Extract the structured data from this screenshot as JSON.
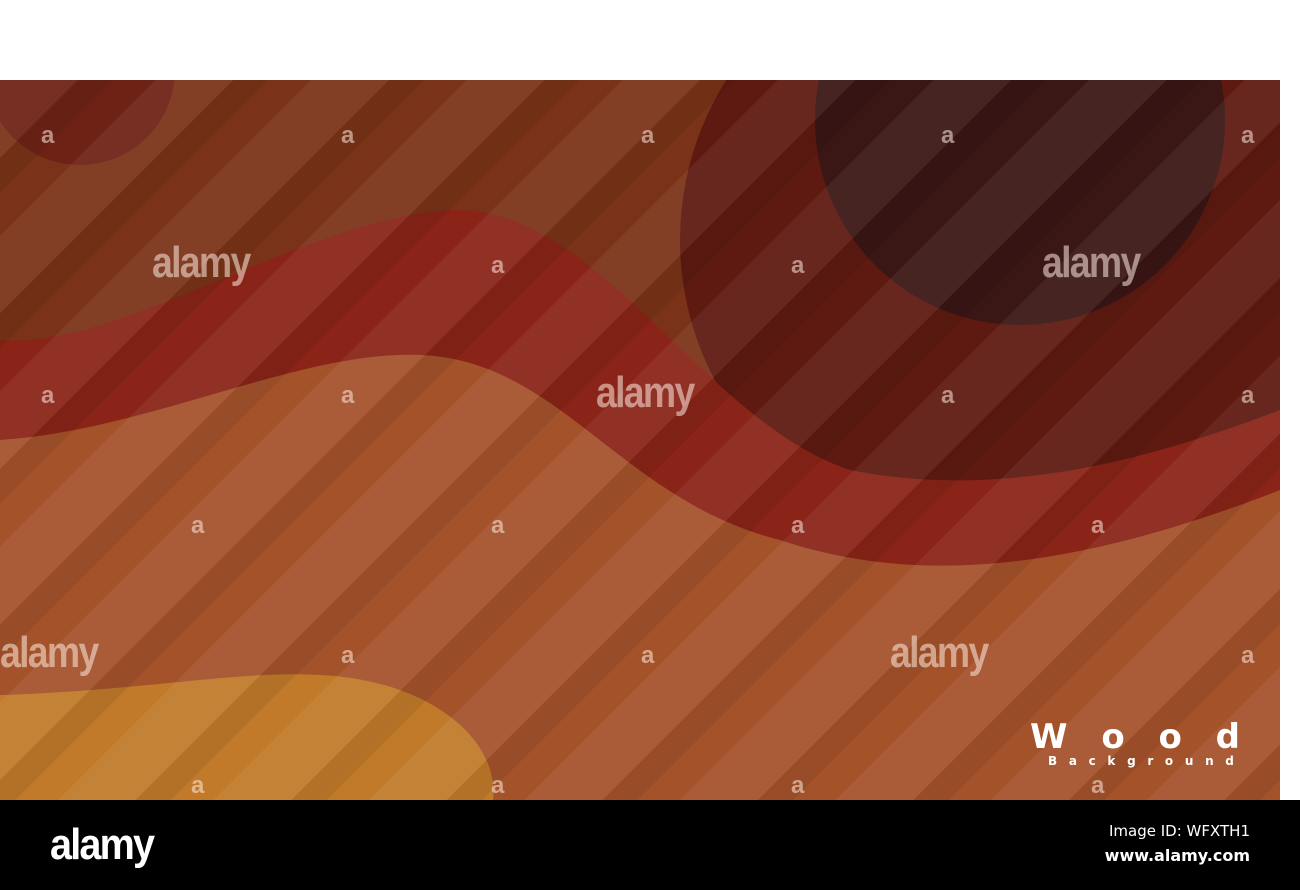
{
  "artwork": {
    "title_word": [
      "W",
      "o",
      "o",
      "d"
    ],
    "subtitle_letters": [
      "B",
      "a",
      "c",
      "k",
      "g",
      "r",
      "o",
      "u",
      "n",
      "d"
    ],
    "colors": {
      "base": "#7a3318",
      "dark_circle": "#3a1614",
      "dark_red": "#5e1a10",
      "red_band": "#8a2418",
      "orange_wave": "#a4522a",
      "yellow_blob": "#c07a2a"
    }
  },
  "watermark": {
    "word": "alamy",
    "letter": "a"
  },
  "footer": {
    "logo": "alamy",
    "image_id": "Image ID: WFXTH1",
    "site": "www.alamy.com"
  }
}
